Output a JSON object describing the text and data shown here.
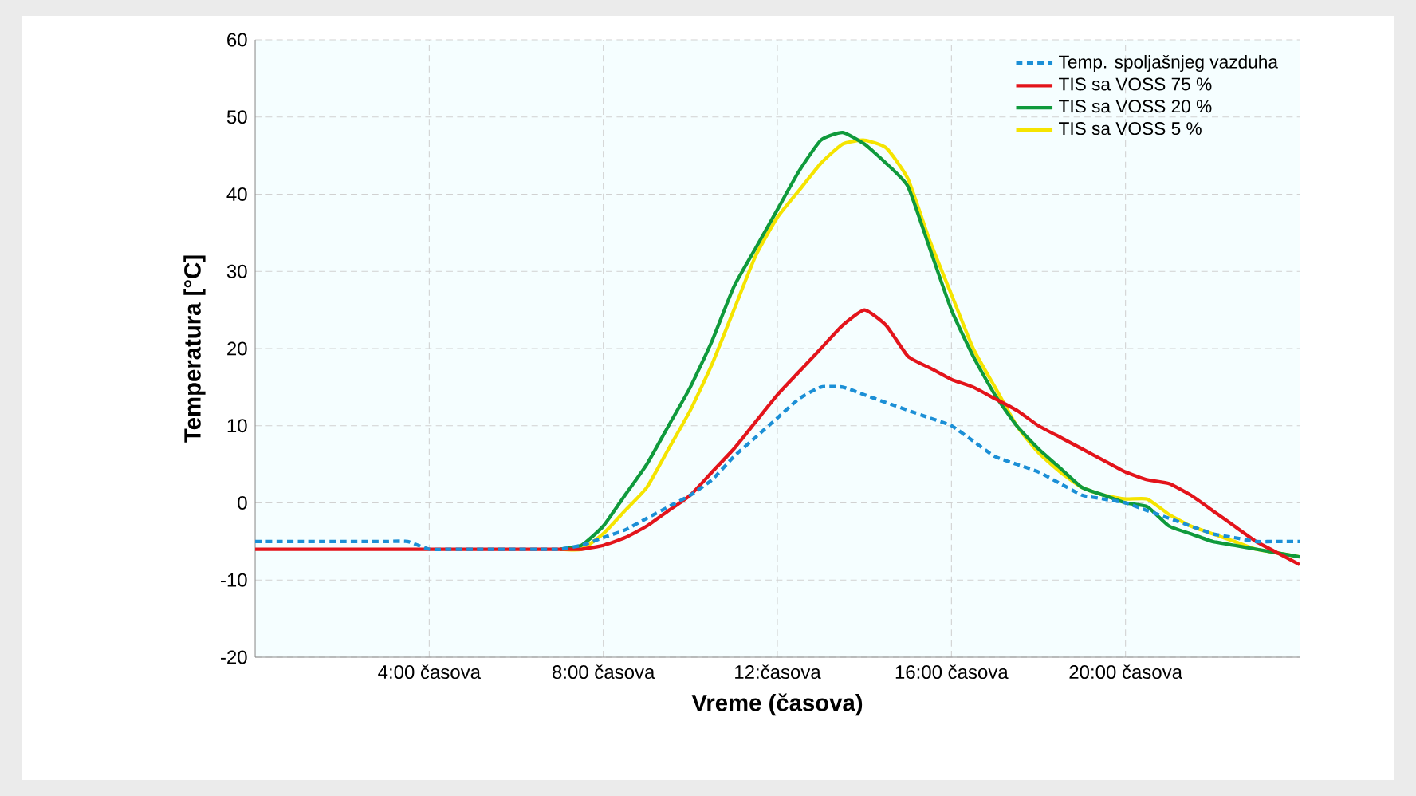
{
  "chart_data": {
    "type": "line",
    "xlabel": "Vreme (časova)",
    "ylabel": "Temperatura [°C]",
    "categories": [
      null,
      null,
      null,
      null,
      null,
      null,
      null,
      null,
      "4:00 časova",
      null,
      null,
      null,
      null,
      null,
      null,
      null,
      "8:00 časova",
      null,
      null,
      null,
      null,
      null,
      null,
      null,
      "12:časova",
      null,
      null,
      null,
      null,
      null,
      null,
      null,
      "16:00 časova",
      null,
      null,
      null,
      null,
      null,
      null,
      null,
      "20:00 časova",
      null,
      null,
      null,
      null,
      null,
      null,
      null,
      null
    ],
    "ylim": [
      -20,
      60
    ],
    "yticks": [
      -20,
      -10,
      0,
      10,
      20,
      30,
      40,
      50,
      60
    ],
    "grid": true,
    "legend": "top right",
    "series": [
      {
        "name": "Temp. spoljašnjeg vazduha",
        "color": "#1b8fd6",
        "line_style": "dashed",
        "values": [
          -5,
          -5,
          -5,
          -5,
          -5,
          -5,
          -5,
          -5,
          -6,
          -6,
          -6,
          -6,
          -6,
          -6,
          -6,
          -5.5,
          -4.5,
          -3.5,
          -2,
          -0.5,
          1,
          3,
          6,
          8.5,
          11,
          13.5,
          15,
          15,
          14,
          13,
          12,
          11,
          10,
          8,
          6,
          5,
          4,
          2.5,
          1,
          0.5,
          0,
          -1,
          -2,
          -3,
          -4,
          -4.5,
          -5,
          -5,
          -5
        ]
      },
      {
        "name": "TIS sa VOSS 75 %",
        "color": "#e3141b",
        "line_style": "solid",
        "values": [
          -6,
          -6,
          -6,
          -6,
          -6,
          -6,
          -6,
          -6,
          -6,
          -6,
          -6,
          -6,
          -6,
          -6,
          -6,
          -6,
          -5.5,
          -4.5,
          -3,
          -1,
          1,
          4,
          7,
          10.5,
          14,
          17,
          20,
          23,
          25,
          23,
          19,
          17.5,
          16,
          15,
          13.5,
          12,
          10,
          8.5,
          7,
          5.5,
          4,
          3,
          2.5,
          1,
          -1,
          -3,
          -5,
          -6.5,
          -8
        ]
      },
      {
        "name": "TIS sa VOSS 20 %",
        "color": "#0f9a3c",
        "line_style": "solid",
        "values": [
          null,
          null,
          null,
          null,
          null,
          null,
          null,
          null,
          null,
          null,
          null,
          null,
          null,
          null,
          -6,
          -5.5,
          -3,
          1,
          5,
          10,
          15,
          21,
          28,
          33,
          38,
          43,
          47,
          48,
          46.5,
          44,
          41,
          33,
          25,
          19,
          14,
          10,
          7,
          4.5,
          2,
          1,
          0,
          -0.5,
          -3,
          -4,
          -5,
          -5.5,
          -6,
          -6.5,
          -7
        ]
      },
      {
        "name": "TIS sa VOSS 5 %",
        "color": "#f5e400",
        "line_style": "solid",
        "values": [
          null,
          null,
          null,
          null,
          null,
          null,
          null,
          null,
          null,
          null,
          null,
          null,
          null,
          null,
          -6,
          -6,
          -4,
          -1,
          2,
          7,
          12,
          18,
          25,
          32,
          37,
          40.5,
          44,
          46.5,
          47,
          46,
          42,
          34,
          27,
          20,
          15,
          10,
          6.5,
          4,
          2,
          1,
          0.5,
          0.5,
          -1.5,
          -3,
          -4,
          -5,
          -6,
          -6.5,
          -7
        ]
      }
    ]
  }
}
